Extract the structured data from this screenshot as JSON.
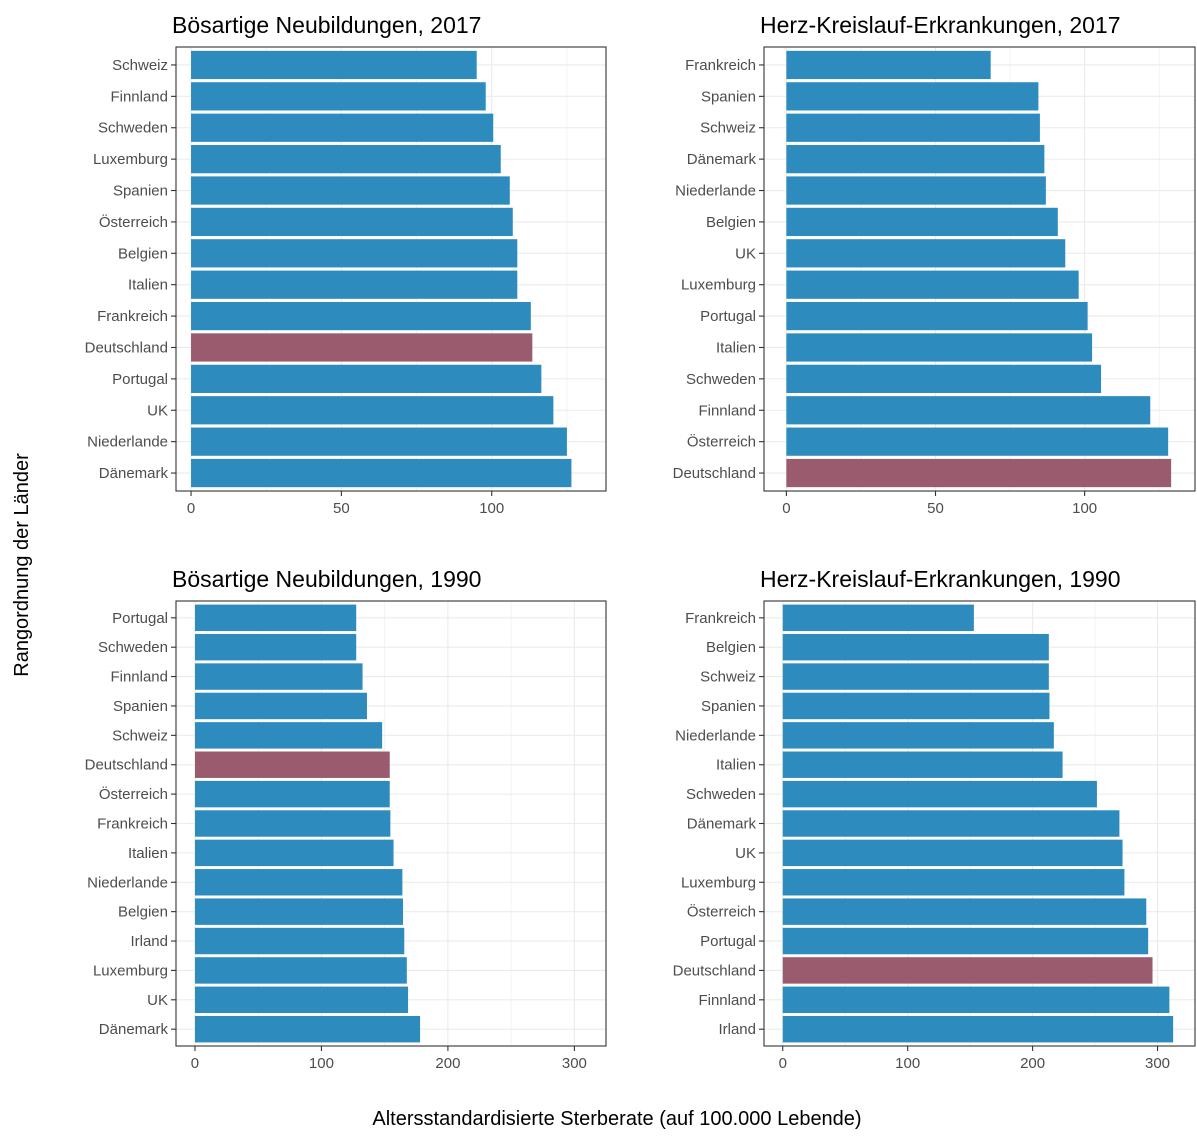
{
  "xlabel": "Altersstandardisierte Sterberate (auf 100.000 Lebende)",
  "ylabel": "Rangordnung der Länder",
  "colors": {
    "bar": "#2e8bbd",
    "highlight": "#9b5b6f",
    "grid": "#ebebeb",
    "border": "#333333"
  },
  "highlight_country": "Deutschland",
  "chart_data": [
    {
      "type": "bar",
      "orientation": "horizontal",
      "title": "Bösartige Neubildungen, 2017",
      "categories": [
        "Schweiz",
        "Finnland",
        "Schweden",
        "Luxemburg",
        "Spanien",
        "Österreich",
        "Belgien",
        "Italien",
        "Frankreich",
        "Deutschland",
        "Portugal",
        "UK",
        "Niederlande",
        "Dänemark"
      ],
      "values": [
        95,
        98,
        100.5,
        103,
        106,
        107,
        108.5,
        108.5,
        113,
        113.5,
        116.5,
        120.5,
        125,
        126.5
      ],
      "xlim": [
        -5,
        138
      ],
      "xticks": [
        0,
        50,
        100
      ],
      "grid": true
    },
    {
      "type": "bar",
      "orientation": "horizontal",
      "title": "Herz-Kreislauf-Erkrankungen, 2017",
      "categories": [
        "Frankreich",
        "Spanien",
        "Schweiz",
        "Dänemark",
        "Niederlande",
        "Belgien",
        "UK",
        "Luxemburg",
        "Portugal",
        "Italien",
        "Schweden",
        "Finnland",
        "Österreich",
        "Deutschland"
      ],
      "values": [
        68.5,
        84.5,
        85,
        86.5,
        87,
        91,
        93.5,
        98,
        101,
        102.5,
        105.5,
        122,
        128,
        129
      ],
      "xlim": [
        -7.5,
        137
      ],
      "xticks": [
        0,
        50,
        100
      ],
      "grid": true
    },
    {
      "type": "bar",
      "orientation": "horizontal",
      "title": "Bösartige Neubildungen, 1990",
      "categories": [
        "Portugal",
        "Schweden",
        "Finnland",
        "Spanien",
        "Schweiz",
        "Deutschland",
        "Österreich",
        "Frankreich",
        "Italien",
        "Niederlande",
        "Belgien",
        "Irland",
        "Luxemburg",
        "UK",
        "Dänemark"
      ],
      "values": [
        127.5,
        127.5,
        132.5,
        136,
        148,
        154,
        154,
        154.5,
        157,
        164,
        164.5,
        165.5,
        167.5,
        168.5,
        178
      ],
      "xlim": [
        -15,
        325
      ],
      "xticks": [
        0,
        100,
        200,
        300
      ],
      "grid": true
    },
    {
      "type": "bar",
      "orientation": "horizontal",
      "title": "Herz-Kreislauf-Erkrankungen, 1990",
      "categories": [
        "Frankreich",
        "Belgien",
        "Schweiz",
        "Spanien",
        "Niederlande",
        "Italien",
        "Schweden",
        "Dänemark",
        "UK",
        "Luxemburg",
        "Österreich",
        "Portugal",
        "Deutschland",
        "Finnland",
        "Irland"
      ],
      "values": [
        153,
        213,
        213,
        213.5,
        217,
        224,
        251.5,
        269.5,
        272,
        273.5,
        291,
        292.5,
        296,
        309.5,
        312.5
      ],
      "xlim": [
        -15,
        330
      ],
      "xticks": [
        0,
        100,
        200,
        300
      ],
      "grid": true
    }
  ]
}
